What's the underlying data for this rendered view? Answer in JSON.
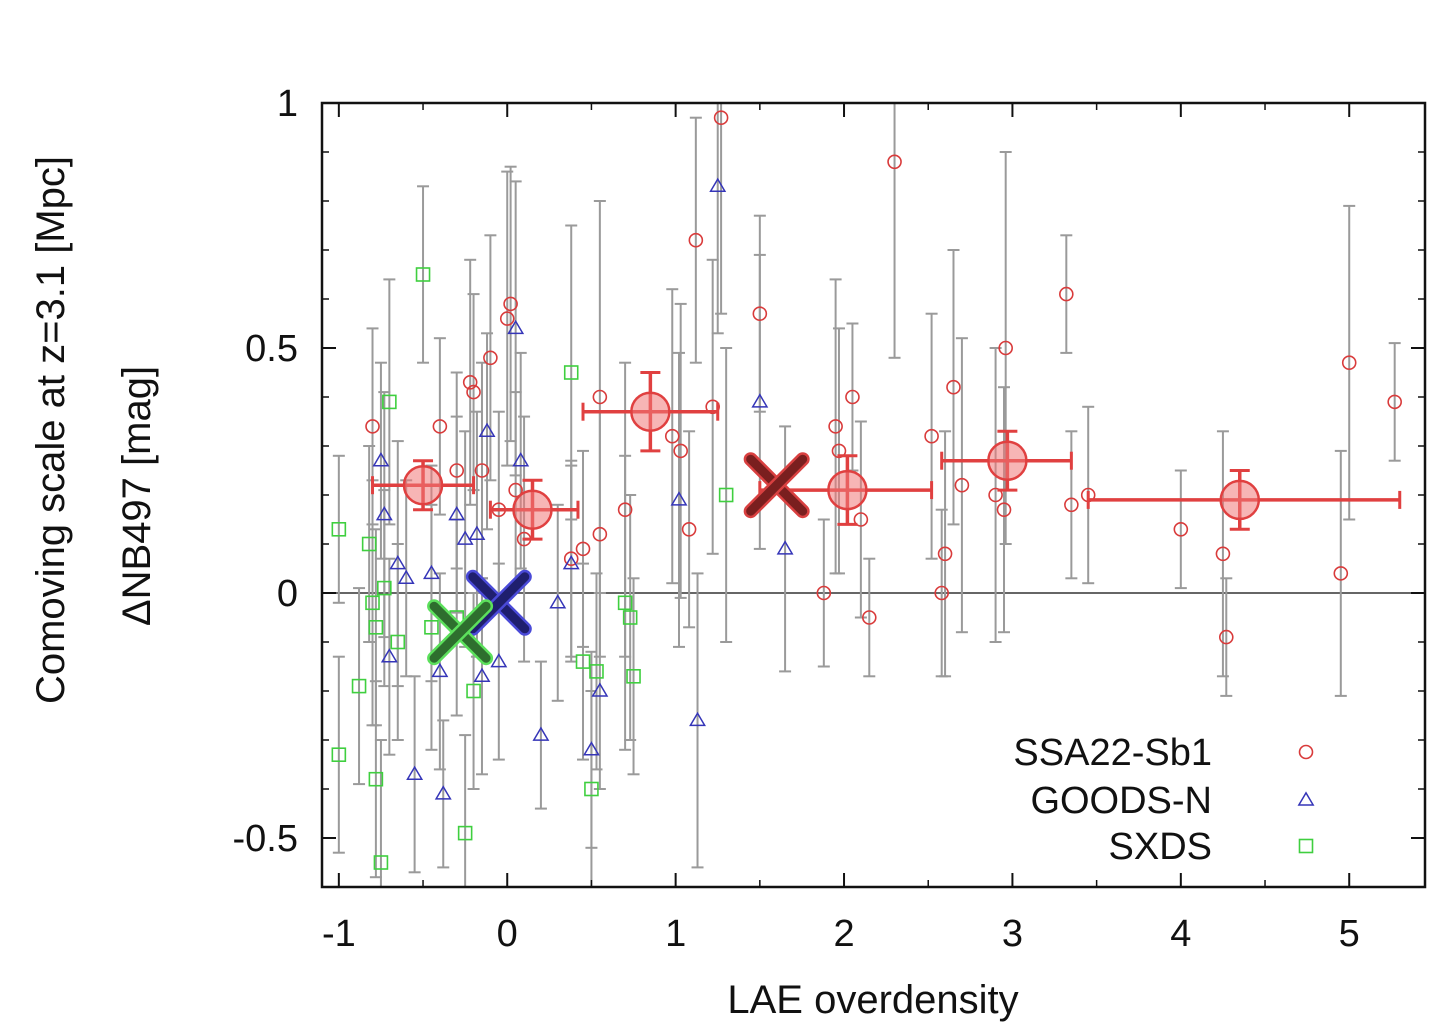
{
  "chart_data": {
    "type": "scatter",
    "title": "",
    "xlabel": "LAE overdensity",
    "ylabel": "ΔNB497 [mag]",
    "ylabel_outer": "Comoving scale at z=3.1 [Mpc]",
    "xlim": [
      -1.1,
      5.45
    ],
    "ylim": [
      -0.6,
      1.0
    ],
    "xticks": [
      -1,
      0,
      1,
      2,
      3,
      4,
      5
    ],
    "xtick_labels": [
      "-1",
      "0",
      "1",
      "2",
      "3",
      "4",
      "5"
    ],
    "yticks": [
      -0.5,
      0,
      0.5,
      1
    ],
    "ytick_labels": [
      "-0.5",
      "0",
      "0.5",
      "1"
    ],
    "grid": false,
    "reference_line_y": 0,
    "legend_position": "bottom-right",
    "series": [
      {
        "name": "SSA22-Sb1",
        "marker": "circle",
        "color": "#d93b3b",
        "points": [
          {
            "x": -0.8,
            "y": 0.34,
            "err": 0.2
          },
          {
            "x": -0.4,
            "y": 0.34,
            "err": 0.18
          },
          {
            "x": -0.3,
            "y": 0.25,
            "err": 0.2
          },
          {
            "x": -0.22,
            "y": 0.43,
            "err": 0.25
          },
          {
            "x": -0.2,
            "y": 0.41,
            "err": 0.2
          },
          {
            "x": -0.15,
            "y": 0.25,
            "err": 0.22
          },
          {
            "x": -0.1,
            "y": 0.48,
            "err": 0.25
          },
          {
            "x": -0.05,
            "y": 0.17,
            "err": 0.2
          },
          {
            "x": 0.0,
            "y": 0.56,
            "err": 0.3
          },
          {
            "x": 0.02,
            "y": 0.59,
            "err": 0.28
          },
          {
            "x": 0.05,
            "y": 0.21,
            "err": 0.2
          },
          {
            "x": 0.1,
            "y": 0.11,
            "err": 0.25
          },
          {
            "x": 0.38,
            "y": 0.07,
            "err": 0.2
          },
          {
            "x": 0.45,
            "y": 0.09,
            "err": 0.2
          },
          {
            "x": 0.55,
            "y": 0.12,
            "err": 0.25
          },
          {
            "x": 0.55,
            "y": 0.4,
            "err": 0.4
          },
          {
            "x": 0.7,
            "y": 0.17,
            "err": 0.3
          },
          {
            "x": 0.98,
            "y": 0.32,
            "err": 0.3
          },
          {
            "x": 1.03,
            "y": 0.29,
            "err": 0.3
          },
          {
            "x": 1.08,
            "y": 0.13,
            "err": 0.2
          },
          {
            "x": 1.12,
            "y": 0.72,
            "err": 0.25
          },
          {
            "x": 1.22,
            "y": 0.38,
            "err": 0.3
          },
          {
            "x": 1.27,
            "y": 0.97,
            "err": 0.4
          },
          {
            "x": 1.5,
            "y": 0.57,
            "err": 0.2
          },
          {
            "x": 1.88,
            "y": 0.0,
            "err": 0.15
          },
          {
            "x": 1.95,
            "y": 0.34,
            "err": 0.3
          },
          {
            "x": 1.97,
            "y": 0.29,
            "err": 0.25
          },
          {
            "x": 2.05,
            "y": 0.4,
            "err": 0.15
          },
          {
            "x": 2.1,
            "y": 0.15,
            "err": 0.2
          },
          {
            "x": 2.15,
            "y": -0.05,
            "err": 0.12
          },
          {
            "x": 2.3,
            "y": 0.88,
            "err": 0.4
          },
          {
            "x": 2.52,
            "y": 0.32,
            "err": 0.25
          },
          {
            "x": 2.58,
            "y": 0.0,
            "err": 0.17
          },
          {
            "x": 2.6,
            "y": 0.08,
            "err": 0.25
          },
          {
            "x": 2.65,
            "y": 0.42,
            "err": 0.28
          },
          {
            "x": 2.7,
            "y": 0.22,
            "err": 0.3
          },
          {
            "x": 2.9,
            "y": 0.2,
            "err": 0.3
          },
          {
            "x": 2.95,
            "y": 0.17,
            "err": 0.25
          },
          {
            "x": 2.96,
            "y": 0.5,
            "err": 0.4
          },
          {
            "x": 3.32,
            "y": 0.61,
            "err": 0.12
          },
          {
            "x": 3.35,
            "y": 0.18,
            "err": 0.15
          },
          {
            "x": 3.45,
            "y": 0.2,
            "err": 0.18
          },
          {
            "x": 4.0,
            "y": 0.13,
            "err": 0.12
          },
          {
            "x": 4.25,
            "y": 0.08,
            "err": 0.25
          },
          {
            "x": 4.27,
            "y": -0.09,
            "err": 0.12
          },
          {
            "x": 4.95,
            "y": 0.04,
            "err": 0.25
          },
          {
            "x": 5.0,
            "y": 0.47,
            "err": 0.32
          },
          {
            "x": 5.27,
            "y": 0.39,
            "err": 0.12
          }
        ]
      },
      {
        "name": "GOODS-N",
        "marker": "triangle",
        "color": "#3535b8",
        "points": [
          {
            "x": -0.75,
            "y": 0.27,
            "err": 0.2
          },
          {
            "x": -0.73,
            "y": 0.16,
            "err": 0.25
          },
          {
            "x": -0.7,
            "y": -0.13,
            "err": 0.2
          },
          {
            "x": -0.65,
            "y": 0.06,
            "err": 0.25
          },
          {
            "x": -0.6,
            "y": 0.03,
            "err": 0.2
          },
          {
            "x": -0.55,
            "y": -0.37,
            "err": 0.2
          },
          {
            "x": -0.45,
            "y": 0.04,
            "err": 0.22
          },
          {
            "x": -0.4,
            "y": -0.16,
            "err": 0.2
          },
          {
            "x": -0.38,
            "y": -0.41,
            "err": 0.15
          },
          {
            "x": -0.3,
            "y": 0.16,
            "err": 0.2
          },
          {
            "x": -0.25,
            "y": 0.11,
            "err": 0.22
          },
          {
            "x": -0.18,
            "y": 0.12,
            "err": 0.25
          },
          {
            "x": -0.15,
            "y": -0.17,
            "err": 0.2
          },
          {
            "x": -0.12,
            "y": 0.33,
            "err": 0.2
          },
          {
            "x": -0.05,
            "y": -0.14,
            "err": 0.2
          },
          {
            "x": 0.05,
            "y": 0.54,
            "err": 0.3
          },
          {
            "x": 0.08,
            "y": 0.27,
            "err": 0.22
          },
          {
            "x": 0.2,
            "y": -0.29,
            "err": 0.15
          },
          {
            "x": 0.3,
            "y": -0.02,
            "err": 0.2
          },
          {
            "x": 0.38,
            "y": 0.06,
            "err": 0.2
          },
          {
            "x": 0.5,
            "y": -0.32,
            "err": 0.2
          },
          {
            "x": 0.55,
            "y": -0.2,
            "err": 0.2
          },
          {
            "x": 1.02,
            "y": 0.19,
            "err": 0.3
          },
          {
            "x": 1.13,
            "y": -0.26,
            "err": 0.3
          },
          {
            "x": 1.25,
            "y": 0.83,
            "err": 0.3
          },
          {
            "x": 1.5,
            "y": 0.39,
            "err": 0.3
          },
          {
            "x": 1.65,
            "y": 0.09,
            "err": 0.25
          }
        ]
      },
      {
        "name": "SXDS",
        "marker": "square",
        "color": "#3fcf3f",
        "points": [
          {
            "x": -1.0,
            "y": 0.13,
            "err": 0.15
          },
          {
            "x": -1.0,
            "y": -0.33,
            "err": 0.2
          },
          {
            "x": -0.88,
            "y": -0.19,
            "err": 0.2
          },
          {
            "x": -0.82,
            "y": 0.1,
            "err": 0.2
          },
          {
            "x": -0.8,
            "y": -0.02,
            "err": 0.25
          },
          {
            "x": -0.78,
            "y": -0.07,
            "err": 0.2
          },
          {
            "x": -0.78,
            "y": -0.38,
            "err": 0.2
          },
          {
            "x": -0.75,
            "y": -0.55,
            "err": 0.25
          },
          {
            "x": -0.73,
            "y": 0.01,
            "err": 0.2
          },
          {
            "x": -0.7,
            "y": 0.39,
            "err": 0.25
          },
          {
            "x": -0.65,
            "y": -0.1,
            "err": 0.2
          },
          {
            "x": -0.5,
            "y": 0.65,
            "err": 0.18
          },
          {
            "x": -0.45,
            "y": -0.07,
            "err": 0.25
          },
          {
            "x": -0.3,
            "y": -0.05,
            "err": 0.2
          },
          {
            "x": -0.25,
            "y": -0.49,
            "err": 0.2
          },
          {
            "x": -0.2,
            "y": -0.2,
            "err": 0.2
          },
          {
            "x": 0.38,
            "y": 0.45,
            "err": 0.3
          },
          {
            "x": 0.45,
            "y": -0.14,
            "err": 0.2
          },
          {
            "x": 0.5,
            "y": -0.4,
            "err": 0.2
          },
          {
            "x": 0.53,
            "y": -0.16,
            "err": 0.2
          },
          {
            "x": 0.7,
            "y": -0.02,
            "err": 0.3
          },
          {
            "x": 0.73,
            "y": -0.05,
            "err": 0.25
          },
          {
            "x": 0.75,
            "y": -0.17,
            "err": 0.2
          },
          {
            "x": 1.3,
            "y": 0.2,
            "err": 0.3
          }
        ]
      }
    ],
    "binned_means": {
      "color": "#e04040",
      "points": [
        {
          "x": -0.5,
          "y": 0.22,
          "xlo": -0.8,
          "xhi": -0.2,
          "err": 0.05
        },
        {
          "x": 0.15,
          "y": 0.17,
          "xlo": -0.1,
          "xhi": 0.42,
          "err": 0.06
        },
        {
          "x": 0.85,
          "y": 0.37,
          "xlo": 0.45,
          "xhi": 1.25,
          "err": 0.08
        },
        {
          "x": 2.02,
          "y": 0.21,
          "xlo": 1.5,
          "xhi": 2.52,
          "err": 0.07
        },
        {
          "x": 2.97,
          "y": 0.27,
          "xlo": 2.58,
          "xhi": 3.35,
          "err": 0.06
        },
        {
          "x": 4.35,
          "y": 0.19,
          "xlo": 3.45,
          "xhi": 5.3,
          "err": 0.06
        }
      ]
    },
    "field_means": [
      {
        "name": "SSA22-Sb1 mean",
        "x": 1.6,
        "y": 0.22,
        "color": "#7a1f1f",
        "edge": "#d94040"
      },
      {
        "name": "GOODS-N mean",
        "x": -0.05,
        "y": -0.02,
        "color": "#1f1f6e",
        "edge": "#4a4ad8"
      },
      {
        "name": "SXDS mean",
        "x": -0.28,
        "y": -0.08,
        "color": "#2e6e2e",
        "edge": "#5ce05c"
      }
    ]
  }
}
